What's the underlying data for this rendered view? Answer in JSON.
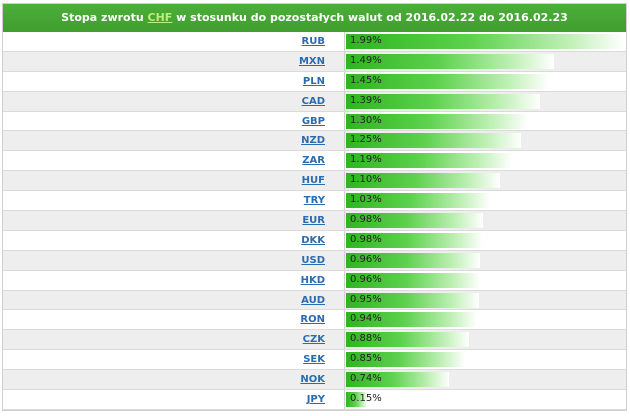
{
  "header": {
    "title_prefix": "Stopa zwrotu",
    "currency": "CHF",
    "title_suffix": "w stosunku do pozostałych walut od 2016.02.22 do 2016.02.23"
  },
  "rows": [
    {
      "code": "RUB",
      "value": "1.99%",
      "num": 1.99
    },
    {
      "code": "MXN",
      "value": "1.49%",
      "num": 1.49
    },
    {
      "code": "PLN",
      "value": "1.45%",
      "num": 1.45
    },
    {
      "code": "CAD",
      "value": "1.39%",
      "num": 1.39
    },
    {
      "code": "GBP",
      "value": "1.30%",
      "num": 1.3
    },
    {
      "code": "NZD",
      "value": "1.25%",
      "num": 1.25
    },
    {
      "code": "ZAR",
      "value": "1.19%",
      "num": 1.19
    },
    {
      "code": "HUF",
      "value": "1.10%",
      "num": 1.1
    },
    {
      "code": "TRY",
      "value": "1.03%",
      "num": 1.03
    },
    {
      "code": "EUR",
      "value": "0.98%",
      "num": 0.98
    },
    {
      "code": "DKK",
      "value": "0.98%",
      "num": 0.98
    },
    {
      "code": "USD",
      "value": "0.96%",
      "num": 0.96
    },
    {
      "code": "HKD",
      "value": "0.96%",
      "num": 0.96
    },
    {
      "code": "AUD",
      "value": "0.95%",
      "num": 0.95
    },
    {
      "code": "RON",
      "value": "0.94%",
      "num": 0.94
    },
    {
      "code": "CZK",
      "value": "0.88%",
      "num": 0.88
    },
    {
      "code": "SEK",
      "value": "0.85%",
      "num": 0.85
    },
    {
      "code": "NOK",
      "value": "0.74%",
      "num": 0.74
    },
    {
      "code": "JPY",
      "value": "0.15%",
      "num": 0.15
    }
  ],
  "colors": {
    "header_bg": "#45a834",
    "bar_start": "#2fb51f",
    "link": "#2b6bb0"
  }
}
